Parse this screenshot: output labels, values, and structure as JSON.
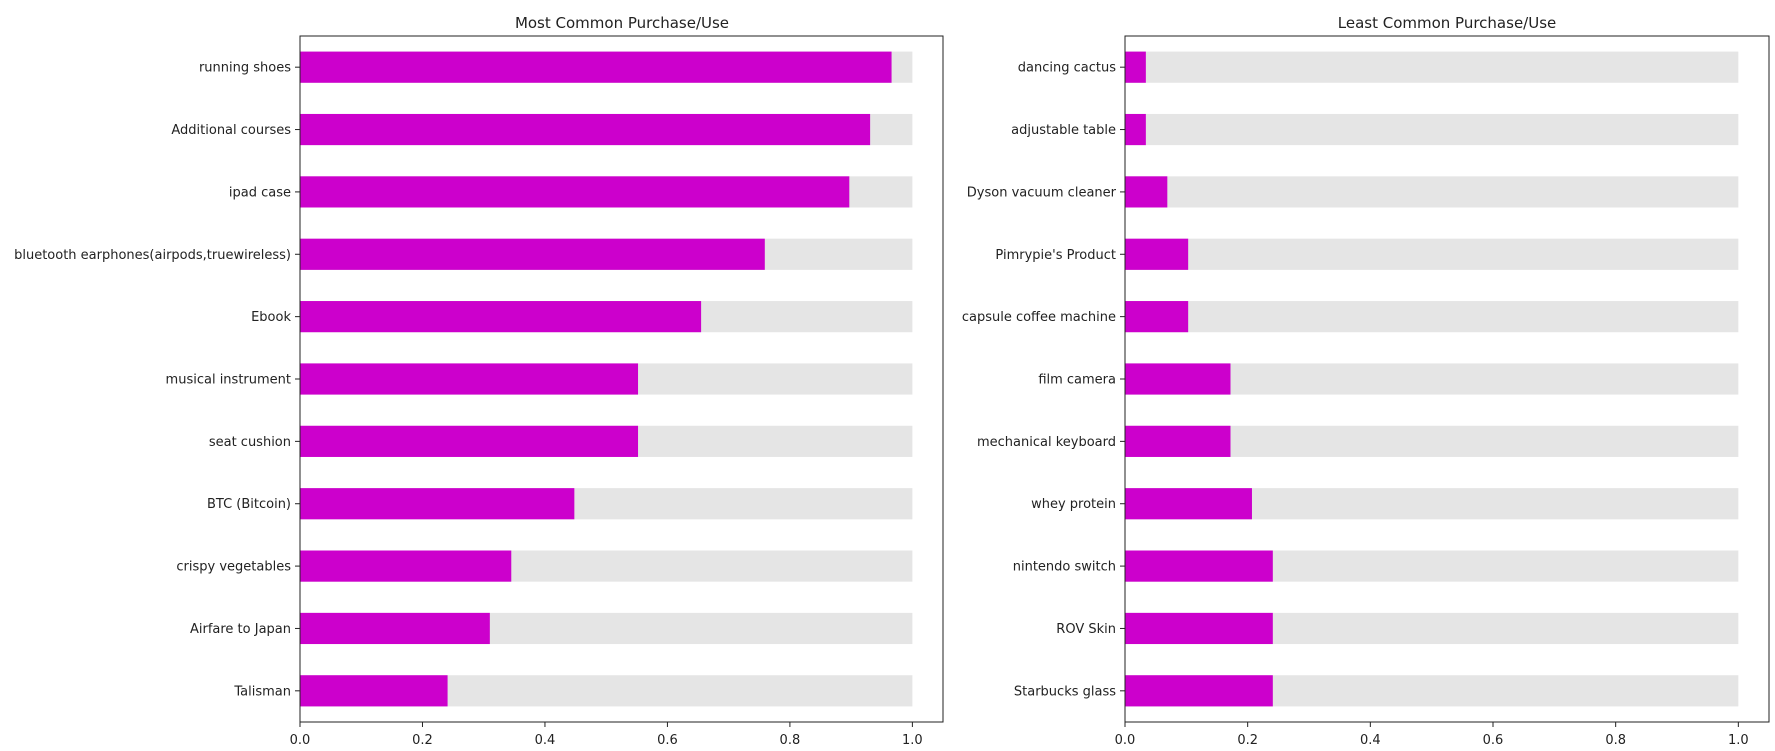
{
  "chart_data": [
    {
      "type": "bar",
      "orientation": "horizontal",
      "title": "Most Common Purchase/Use",
      "categories": [
        "running shoes",
        "Additional courses",
        "ipad case",
        "bluetooth earphones(airpods,truewireless)",
        "Ebook",
        "musical instrument",
        "seat cushion",
        "BTC (Bitcoin)",
        "crispy vegetables",
        "Airfare to Japan",
        "Talisman"
      ],
      "series": [
        {
          "values": [
            0.966,
            0.931,
            0.897,
            0.759,
            0.655,
            0.552,
            0.552,
            0.448,
            0.345,
            0.31,
            0.241
          ]
        },
        {
          "values": [
            1,
            1,
            1,
            1,
            1,
            1,
            1,
            1,
            1,
            1,
            1
          ]
        }
      ],
      "xlim": [
        0,
        1.05
      ],
      "xticks": [
        "0.0",
        "0.2",
        "0.4",
        "0.6",
        "0.8",
        "1.0"
      ],
      "xlabel": "",
      "ylabel": "",
      "grid": false,
      "colors": {
        "value": "#cc00cc",
        "background": "#e5e5e5"
      }
    },
    {
      "type": "bar",
      "orientation": "horizontal",
      "title": "Least Common Purchase/Use",
      "categories": [
        "dancing cactus",
        "adjustable table",
        "Dyson vacuum cleaner",
        "Pimrypie's Product",
        "capsule coffee machine",
        "film camera",
        "mechanical keyboard",
        "whey protein",
        "nintendo switch",
        "ROV Skin",
        "Starbucks glass"
      ],
      "series": [
        {
          "values": [
            0.034,
            0.034,
            0.069,
            0.103,
            0.103,
            0.172,
            0.172,
            0.207,
            0.241,
            0.241,
            0.241
          ]
        },
        {
          "values": [
            1,
            1,
            1,
            1,
            1,
            1,
            1,
            1,
            1,
            1,
            1
          ]
        }
      ],
      "xlim": [
        0,
        1.05
      ],
      "xticks": [
        "0.0",
        "0.2",
        "0.4",
        "0.6",
        "0.8",
        "1.0"
      ],
      "xlabel": "",
      "ylabel": "",
      "grid": false,
      "colors": {
        "value": "#cc00cc",
        "background": "#e5e5e5"
      }
    }
  ]
}
